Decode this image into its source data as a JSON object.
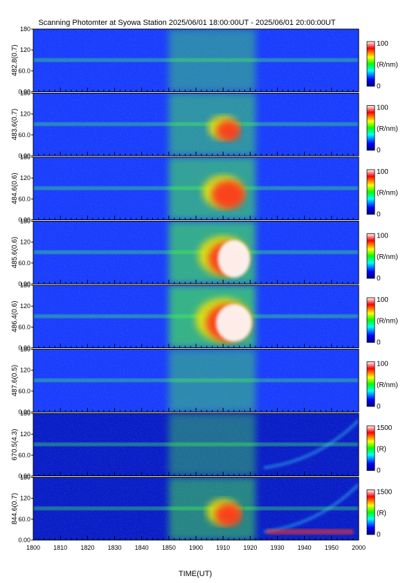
{
  "chart_data": {
    "type": "heatmap",
    "title": "Scanning Photomter at Syowa Station 2025/06/01 18:00:00UT - 2025/06/01 20:00:00UT",
    "xlabel": "TIME(UT)",
    "x_ticks": [
      "1800",
      "1810",
      "1820",
      "1830",
      "1840",
      "1850",
      "1900",
      "1910",
      "1920",
      "1930",
      "1940",
      "1950",
      "2000"
    ],
    "y_ticks": [
      "0.00",
      "60.0",
      "120",
      "180"
    ],
    "ylim": [
      0,
      180
    ],
    "panels": [
      {
        "label": "482.8(0.7)",
        "unit": "(R/nm)",
        "cmax": "100",
        "cmin": "0",
        "intensity": 0.35
      },
      {
        "label": "483.6(0.7)",
        "unit": "(R/nm)",
        "cmax": "100",
        "cmin": "0",
        "intensity": 0.55
      },
      {
        "label": "484.6(0.6)",
        "unit": "(R/nm)",
        "cmax": "100",
        "cmin": "0",
        "intensity": 0.75
      },
      {
        "label": "485.6(0.6)",
        "unit": "(R/nm)",
        "cmax": "100",
        "cmin": "0",
        "intensity": 0.9
      },
      {
        "label": "486.4(0.6)",
        "unit": "(R/nm)",
        "cmax": "100",
        "cmin": "0",
        "intensity": 1.0
      },
      {
        "label": "487.6(0.5)",
        "unit": "(R/nm)",
        "cmax": "100",
        "cmin": "0",
        "intensity": 0.4
      },
      {
        "label": "670.5(4.3)",
        "unit": "(R)",
        "cmax": "1500",
        "cmin": "0",
        "intensity": 0.3
      },
      {
        "label": "844.6(0.7)",
        "unit": "(R)",
        "cmax": "1500",
        "cmin": "0",
        "intensity": 0.6
      }
    ]
  }
}
